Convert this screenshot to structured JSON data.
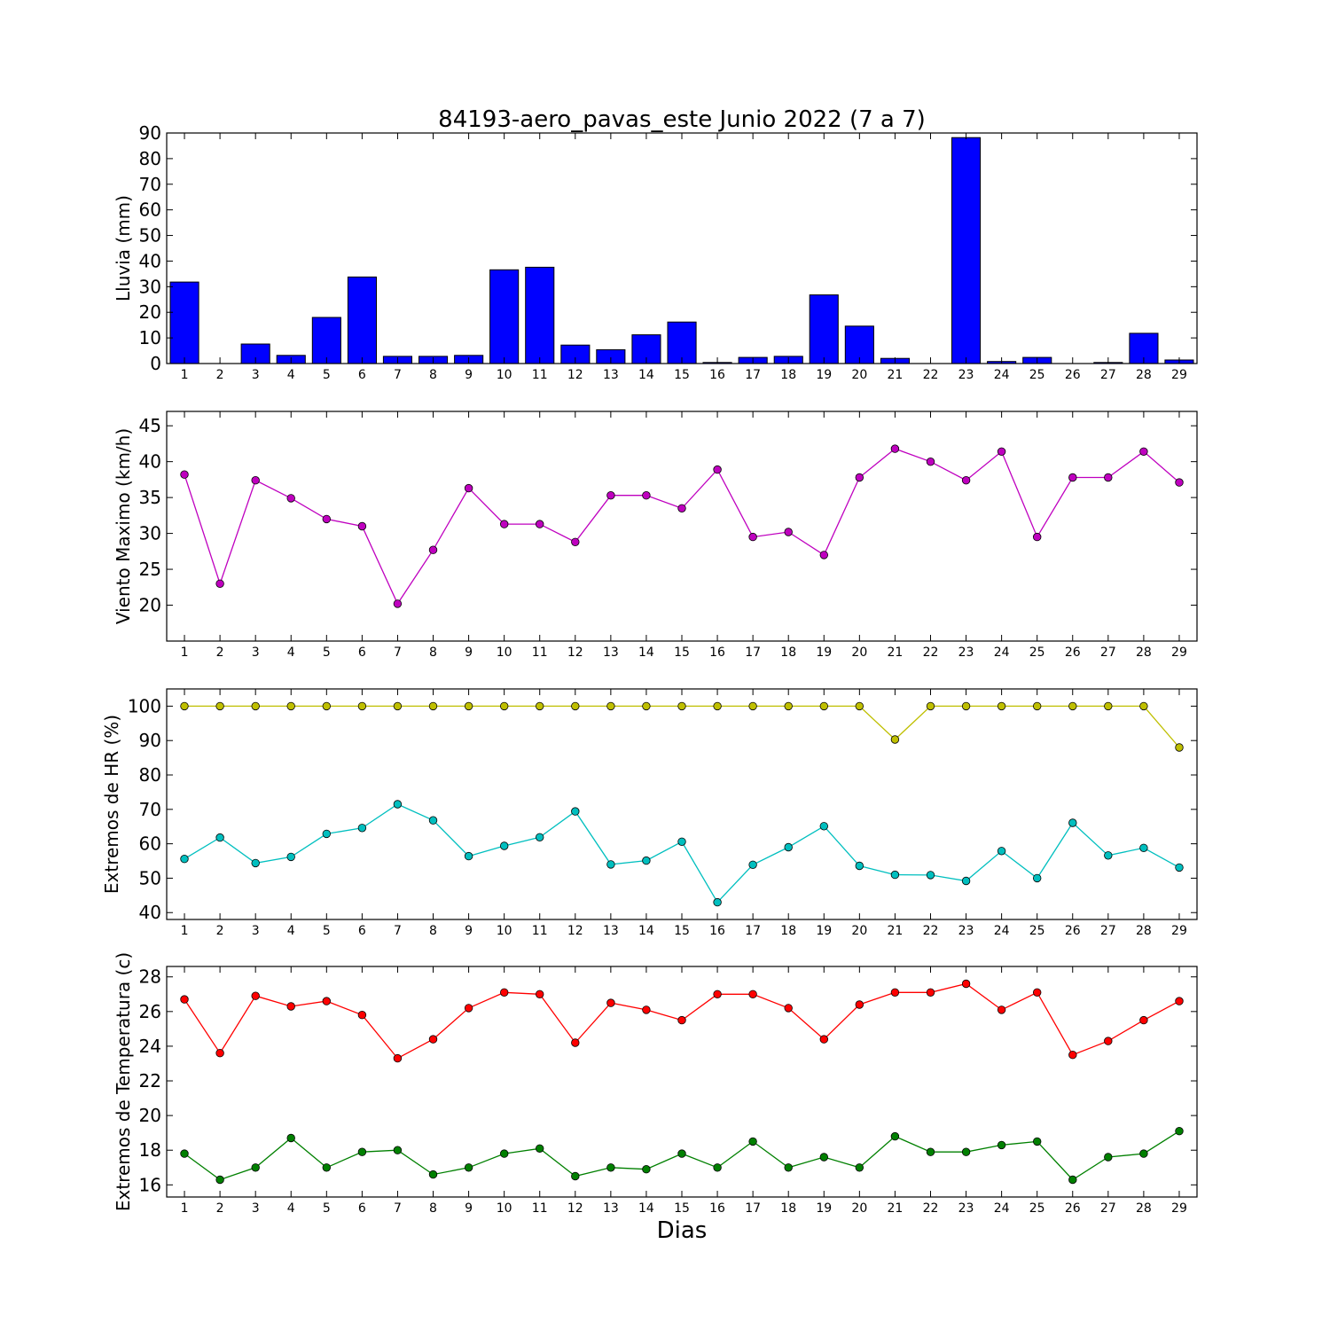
{
  "title": "84193-aero_pavas_este Junio 2022  (7 a 7)",
  "xlabel": "Dias",
  "colors": {
    "bar": "#0000ff",
    "wind": "#bf00bf",
    "hr_max": "#bfbf00",
    "hr_min": "#00bfbf",
    "temp_max": "#ff0000",
    "temp_min": "#008000"
  },
  "chart_data": [
    {
      "type": "bar",
      "ylabel": "Lluvia (mm)",
      "x": [
        1,
        2,
        3,
        4,
        5,
        6,
        7,
        8,
        9,
        10,
        11,
        12,
        13,
        14,
        15,
        16,
        17,
        18,
        19,
        20,
        21,
        22,
        23,
        24,
        25,
        26,
        27,
        28,
        29
      ],
      "xlim": [
        0.5,
        29.5
      ],
      "ylim": [
        0,
        90
      ],
      "yticks": [
        0,
        10,
        20,
        30,
        40,
        50,
        60,
        70,
        80,
        90
      ],
      "series": [
        {
          "values": [
            31.8,
            0,
            7.6,
            3.2,
            18.0,
            33.8,
            2.8,
            2.8,
            3.2,
            36.6,
            37.6,
            7.2,
            5.4,
            11.2,
            16.2,
            0.4,
            2.4,
            2.8,
            26.8,
            14.6,
            2.0,
            0,
            88.2,
            0.8,
            2.4,
            0,
            0.4,
            11.8,
            1.4
          ]
        }
      ]
    },
    {
      "type": "line",
      "ylabel": "Viento Maximo (km/h)",
      "x": [
        1,
        2,
        3,
        4,
        5,
        6,
        7,
        8,
        9,
        10,
        11,
        12,
        13,
        14,
        15,
        16,
        17,
        18,
        19,
        20,
        21,
        22,
        23,
        24,
        25,
        26,
        27,
        28,
        29
      ],
      "xlim": [
        0.5,
        29.5
      ],
      "ylim": [
        15,
        47
      ],
      "yticks": [
        20,
        25,
        30,
        35,
        40,
        45
      ],
      "series": [
        {
          "color_key": "wind",
          "values": [
            38.2,
            23.0,
            37.4,
            34.9,
            32.0,
            31.0,
            20.2,
            27.7,
            36.3,
            31.3,
            31.3,
            28.8,
            35.3,
            35.3,
            33.5,
            38.9,
            29.5,
            30.2,
            27.0,
            37.8,
            41.8,
            40.0,
            37.4,
            41.4,
            29.5,
            37.8,
            37.8,
            41.4,
            37.1
          ]
        }
      ]
    },
    {
      "type": "line",
      "ylabel": "Extremos de HR (%)",
      "x": [
        1,
        2,
        3,
        4,
        5,
        6,
        7,
        8,
        9,
        10,
        11,
        12,
        13,
        14,
        15,
        16,
        17,
        18,
        19,
        20,
        21,
        22,
        23,
        24,
        25,
        26,
        27,
        28,
        29
      ],
      "xlim": [
        0.5,
        29.5
      ],
      "ylim": [
        38,
        105
      ],
      "yticks": [
        40,
        50,
        60,
        70,
        80,
        90,
        100
      ],
      "series": [
        {
          "color_key": "hr_max",
          "values": [
            100,
            100,
            100,
            100,
            100,
            100,
            100,
            100,
            100,
            100,
            100,
            100,
            100,
            100,
            100,
            100,
            100,
            100,
            100,
            100,
            90.3,
            100,
            100,
            100,
            100,
            100,
            100,
            100,
            88
          ]
        },
        {
          "color_key": "hr_min",
          "values": [
            55.6,
            61.8,
            54.4,
            56.2,
            62.9,
            64.6,
            71.5,
            66.8,
            56.4,
            59.4,
            61.9,
            69.4,
            54.0,
            55.1,
            60.6,
            43.0,
            53.9,
            59.0,
            65.1,
            53.6,
            51.0,
            50.9,
            49.2,
            57.9,
            50.0,
            66.1,
            56.6,
            58.8,
            53.1
          ]
        }
      ]
    },
    {
      "type": "line",
      "ylabel": "Extremos de Temperatura (c)",
      "x": [
        1,
        2,
        3,
        4,
        5,
        6,
        7,
        8,
        9,
        10,
        11,
        12,
        13,
        14,
        15,
        16,
        17,
        18,
        19,
        20,
        21,
        22,
        23,
        24,
        25,
        26,
        27,
        28,
        29
      ],
      "xlim": [
        0.5,
        29.5
      ],
      "ylim": [
        15.3,
        28.6
      ],
      "yticks": [
        16,
        18,
        20,
        22,
        24,
        26,
        28
      ],
      "series": [
        {
          "color_key": "temp_max",
          "values": [
            26.7,
            23.6,
            26.9,
            26.3,
            26.6,
            25.8,
            23.3,
            24.4,
            26.2,
            27.1,
            27.0,
            24.2,
            26.5,
            26.1,
            25.5,
            27.0,
            27.0,
            26.2,
            24.4,
            26.4,
            27.1,
            27.1,
            27.6,
            26.1,
            27.1,
            23.5,
            24.3,
            25.5,
            26.6
          ]
        },
        {
          "color_key": "temp_min",
          "values": [
            17.8,
            16.3,
            17.0,
            18.7,
            17.0,
            17.9,
            18.0,
            16.6,
            17.0,
            17.8,
            18.1,
            16.5,
            17.0,
            16.9,
            17.8,
            17.0,
            18.5,
            17.0,
            17.6,
            17.0,
            18.8,
            17.9,
            17.9,
            18.3,
            18.5,
            16.3,
            17.6,
            17.8,
            19.1
          ]
        }
      ]
    }
  ]
}
